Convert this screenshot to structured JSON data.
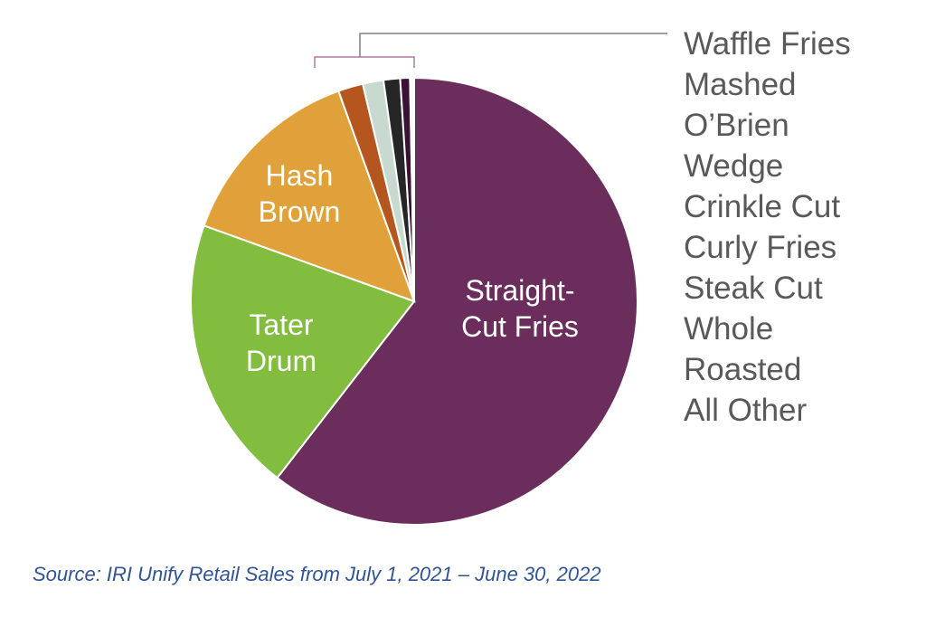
{
  "chart_data": {
    "type": "pie",
    "title": "",
    "categories": [
      "Straight-Cut Fries",
      "Tater Drum",
      "Hash Brown",
      "Waffle Fries",
      "Mashed",
      "O’Brien",
      "Wedge",
      "Crinkle Cut",
      "Curly Fries",
      "Steak Cut",
      "Whole",
      "Roasted",
      "All Other"
    ],
    "values": [
      60.5,
      20.0,
      14.0,
      1.8,
      1.5,
      1.2,
      0.7,
      0.1,
      0.1,
      0.05,
      0.05,
      0.0,
      0.0
    ],
    "colors": [
      "#6b2d5c",
      "#82bd40",
      "#e0a13b",
      "#b5561e",
      "#c8d9cf",
      "#262626",
      "#3b1234",
      "#d9d9d9",
      "#7f7f7f",
      "#bfbfbf",
      "#a6a6a6",
      "#8c8c8c",
      "#595959"
    ],
    "slice_labels": [
      [
        "Straight-",
        "Cut Fries"
      ],
      [
        "Tater",
        "Drum"
      ],
      [
        "Hash",
        "Brown"
      ]
    ],
    "legend_position": "right",
    "legend_entries": [
      "Waffle Fries",
      "Mashed",
      "O’Brien",
      "Wedge",
      "Crinkle Cut",
      "Curly Fries",
      "Steak Cut",
      "Whole",
      "Roasted",
      "All Other"
    ]
  },
  "source": "Source: IRI Unify Retail Sales from July 1, 2021 – June 30, 2022",
  "colors": {
    "legend_text": "#595959",
    "source_text": "#2f5597",
    "bracket": "#b07aa0",
    "bracket_line": "#7f7f7f"
  }
}
